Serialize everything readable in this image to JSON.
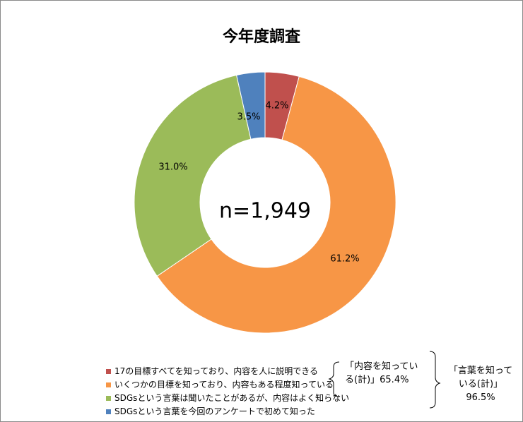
{
  "chart_data": {
    "type": "pie",
    "title": "今年度調査",
    "center_text": "n=1,949",
    "slices": [
      {
        "label": "17の目標すべてを知っており、内容を人に説明できる",
        "value": 4.2,
        "display": "4.2%",
        "color": "#C0504D"
      },
      {
        "label": "いくつかの目標を知っており、内容もある程度知っている",
        "value": 61.2,
        "display": "61.2%",
        "color": "#F79646"
      },
      {
        "label": "SDGsという言葉は聞いたことがあるが、内容はよく知らない",
        "value": 31.0,
        "display": "31.0%",
        "color": "#9BBB59"
      },
      {
        "label": "SDGsという言葉を今回のアンケートで初めて知った",
        "value": 3.5,
        "display": "3.5%",
        "color": "#4F81BD"
      }
    ],
    "legend_position": "bottom-left"
  },
  "annotations": {
    "group1": "「内容を知ってい る(計)」65.4%",
    "group2": "「言葉を知って いる(計)」 96.5%"
  }
}
